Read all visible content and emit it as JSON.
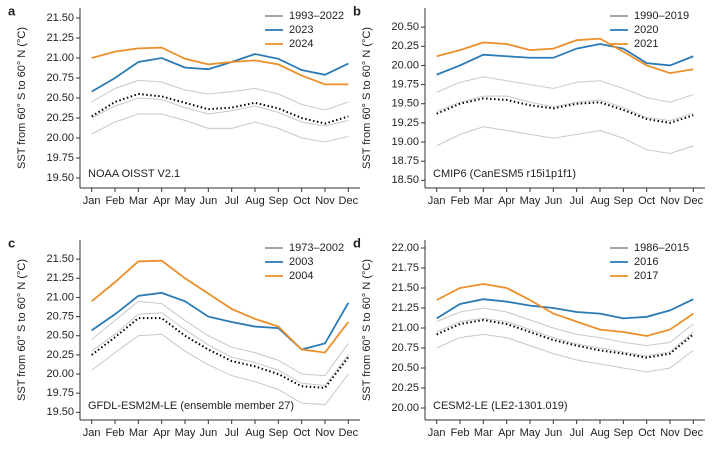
{
  "chart_data": [
    {
      "type": "line",
      "label": "a",
      "ylabel": "SST from 60° S to 60° N (°C)",
      "annotation": "NOAA OISST V2.1",
      "categories": [
        "Jan",
        "Feb",
        "Mar",
        "Apr",
        "May",
        "Jun",
        "Jul",
        "Aug",
        "Sep",
        "Oct",
        "Nov",
        "Dec"
      ],
      "ylim": [
        19.375,
        21.625
      ],
      "yticks": [
        {
          "value": 19.5,
          "label": "19.50"
        },
        19.75,
        {
          "value": 20,
          "label": "20.00"
        },
        20.25,
        {
          "value": 20.5,
          "label": "20.50"
        },
        20.75,
        {
          "value": 21,
          "label": "21.00"
        },
        21.25,
        {
          "value": 21.5,
          "label": "21.50"
        }
      ],
      "series": [
        {
          "name": "1993–2022",
          "color": "#c8c8c8",
          "values": [
            [
              20.05,
              20.2,
              20.3,
              20.3,
              20.22,
              20.12,
              20.12,
              20.2,
              20.12,
              20.0,
              19.95,
              20.02
            ],
            [
              20.45,
              20.62,
              20.72,
              20.7,
              20.6,
              20.55,
              20.58,
              20.62,
              20.55,
              20.42,
              20.35,
              20.45
            ],
            [
              20.25,
              20.4,
              20.5,
              20.48,
              20.38,
              20.3,
              20.34,
              20.4,
              20.32,
              20.2,
              20.15,
              20.22
            ]
          ]
        },
        {
          "color": "#000000",
          "style": "dotted",
          "values": [
            20.27,
            20.45,
            20.55,
            20.52,
            20.44,
            20.36,
            20.38,
            20.44,
            20.37,
            20.25,
            20.18,
            20.27
          ]
        },
        {
          "name": "2023",
          "color": "#2a7ab5",
          "values": [
            20.58,
            20.75,
            20.95,
            21.0,
            20.88,
            20.86,
            20.95,
            21.05,
            20.99,
            20.85,
            20.79,
            20.93
          ]
        },
        {
          "name": "2024",
          "color": "#ec8f2a",
          "values": [
            21.0,
            21.08,
            21.12,
            21.13,
            20.99,
            20.92,
            20.95,
            20.97,
            20.92,
            20.78,
            20.67,
            20.67
          ]
        }
      ]
    },
    {
      "type": "line",
      "label": "b",
      "ylabel": "SST from 60° S to 60° N (°C)",
      "annotation": "CMIP6 (CanESM5 r15i1p1f1)",
      "categories": [
        "Jan",
        "Feb",
        "Mar",
        "Apr",
        "May",
        "Jun",
        "Jul",
        "Aug",
        "Sep",
        "Oct",
        "Nov",
        "Dec"
      ],
      "ylim": [
        18.4,
        20.75
      ],
      "yticks": [
        {
          "value": 18.5,
          "label": "18.50"
        },
        18.75,
        {
          "value": 19,
          "label": "19.00"
        },
        19.25,
        {
          "value": 19.5,
          "label": "19.50"
        },
        19.75,
        {
          "value": 20,
          "label": "20.00"
        },
        20.25,
        {
          "value": 20.5,
          "label": "20.50"
        }
      ],
      "series": [
        {
          "name": "1990–2019",
          "color": "#c8c8c8",
          "values": [
            [
              18.95,
              19.1,
              19.2,
              19.15,
              19.1,
              19.05,
              19.1,
              19.15,
              19.05,
              18.9,
              18.85,
              18.95
            ],
            [
              19.65,
              19.78,
              19.85,
              19.8,
              19.75,
              19.7,
              19.78,
              19.8,
              19.7,
              19.58,
              19.52,
              19.62
            ],
            [
              19.4,
              19.52,
              19.6,
              19.6,
              19.52,
              19.46,
              19.52,
              19.55,
              19.45,
              19.32,
              19.28,
              19.38
            ]
          ]
        },
        {
          "color": "#000000",
          "style": "dotted",
          "values": [
            19.37,
            19.5,
            19.57,
            19.55,
            19.48,
            19.44,
            19.5,
            19.52,
            19.42,
            19.3,
            19.25,
            19.35
          ]
        },
        {
          "name": "2020",
          "color": "#2a7ab5",
          "values": [
            19.88,
            20.0,
            20.14,
            20.12,
            20.1,
            20.1,
            20.22,
            20.28,
            20.22,
            20.03,
            20.0,
            20.12
          ]
        },
        {
          "name": "2021",
          "color": "#ec8f2a",
          "values": [
            20.12,
            20.2,
            20.3,
            20.28,
            20.2,
            20.22,
            20.33,
            20.35,
            20.18,
            20.0,
            19.9,
            19.95
          ]
        }
      ]
    },
    {
      "type": "line",
      "label": "c",
      "ylabel": "SST from 60° S to 60° N (°C)",
      "annotation": "GFDL-ESM2M-LE (ensemble member 27)",
      "categories": [
        "Jan",
        "Feb",
        "Mar",
        "Apr",
        "May",
        "Jun",
        "Jul",
        "Aug",
        "Sep",
        "Oct",
        "Nov",
        "Dec"
      ],
      "ylim": [
        19.4,
        21.75
      ],
      "yticks": [
        {
          "value": 19.5,
          "label": "19.50"
        },
        19.75,
        {
          "value": 20,
          "label": "20.00"
        },
        20.25,
        {
          "value": 20.5,
          "label": "20.50"
        },
        20.75,
        {
          "value": 21,
          "label": "21.00"
        },
        21.25,
        {
          "value": 21.5,
          "label": "21.50"
        }
      ],
      "series": [
        {
          "name": "1973–2002",
          "color": "#c8c8c8",
          "values": [
            [
              20.05,
              20.28,
              20.5,
              20.52,
              20.3,
              20.12,
              19.98,
              19.9,
              19.8,
              19.62,
              19.6,
              20.0
            ],
            [
              20.45,
              20.7,
              20.95,
              20.92,
              20.7,
              20.5,
              20.35,
              20.28,
              20.18,
              20.0,
              19.98,
              20.4
            ],
            [
              20.3,
              20.52,
              20.78,
              20.8,
              20.58,
              20.38,
              20.22,
              20.15,
              20.05,
              19.88,
              19.85,
              20.25
            ]
          ]
        },
        {
          "color": "#000000",
          "style": "dotted",
          "values": [
            20.25,
            20.48,
            20.73,
            20.73,
            20.5,
            20.32,
            20.17,
            20.1,
            20.0,
            19.84,
            19.82,
            20.22
          ]
        },
        {
          "name": "2003",
          "color": "#2a7ab5",
          "values": [
            20.57,
            20.78,
            21.02,
            21.06,
            20.95,
            20.75,
            20.68,
            20.62,
            20.6,
            20.32,
            20.4,
            20.93
          ]
        },
        {
          "name": "2004",
          "color": "#ec8f2a",
          "values": [
            20.95,
            21.2,
            21.47,
            21.48,
            21.25,
            21.05,
            20.85,
            20.72,
            20.62,
            20.32,
            20.28,
            20.68
          ]
        }
      ]
    },
    {
      "type": "line",
      "label": "d",
      "ylabel": "SST from 60° S to 60° N (°C)",
      "annotation": "CESM2-LE (LE2-1301.019)",
      "categories": [
        "Jan",
        "Feb",
        "Mar",
        "Apr",
        "May",
        "Jun",
        "Jul",
        "Aug",
        "Sep",
        "Oct",
        "Nov",
        "Dec"
      ],
      "ylim": [
        19.85,
        22.1
      ],
      "yticks": [
        {
          "value": 20,
          "label": "20.00"
        },
        20.25,
        {
          "value": 20.5,
          "label": "20.50"
        },
        20.75,
        {
          "value": 21,
          "label": "21.00"
        },
        21.25,
        {
          "value": 21.5,
          "label": "21.50"
        },
        21.75,
        {
          "value": 22,
          "label": "22.00"
        }
      ],
      "series": [
        {
          "name": "1986–2015",
          "color": "#c8c8c8",
          "values": [
            [
              20.75,
              20.88,
              20.92,
              20.88,
              20.78,
              20.68,
              20.6,
              20.55,
              20.5,
              20.45,
              20.5,
              20.72
            ],
            [
              21.08,
              21.2,
              21.25,
              21.2,
              21.1,
              21.0,
              20.92,
              20.88,
              20.82,
              20.78,
              20.82,
              21.05
            ],
            [
              20.95,
              21.08,
              21.12,
              21.08,
              20.98,
              20.88,
              20.8,
              20.75,
              20.7,
              20.65,
              20.7,
              20.95
            ]
          ]
        },
        {
          "color": "#000000",
          "style": "dotted",
          "values": [
            20.92,
            21.05,
            21.1,
            21.05,
            20.95,
            20.85,
            20.78,
            20.72,
            20.68,
            20.63,
            20.68,
            20.92
          ]
        },
        {
          "name": "2016",
          "color": "#2a7ab5",
          "values": [
            21.12,
            21.3,
            21.36,
            21.33,
            21.28,
            21.25,
            21.2,
            21.18,
            21.12,
            21.14,
            21.22,
            21.36
          ]
        },
        {
          "name": "2017",
          "color": "#ec8f2a",
          "values": [
            21.35,
            21.5,
            21.55,
            21.5,
            21.35,
            21.18,
            21.08,
            20.98,
            20.95,
            20.9,
            20.98,
            21.18
          ]
        }
      ]
    }
  ]
}
